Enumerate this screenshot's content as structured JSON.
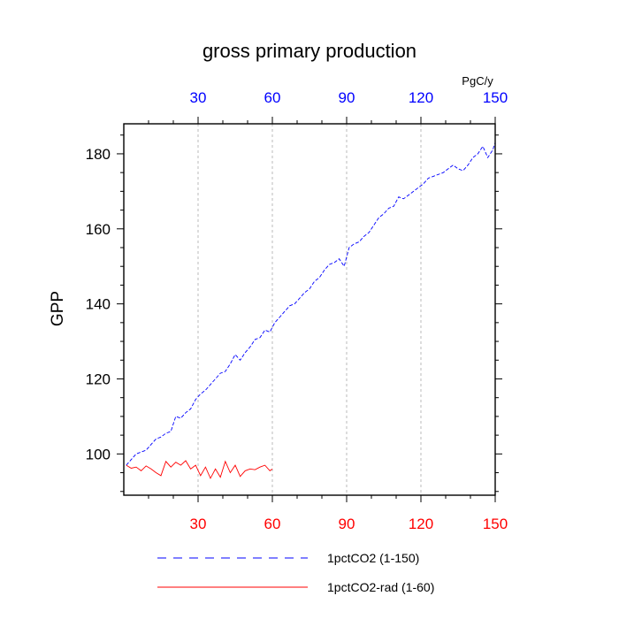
{
  "chart_data": {
    "type": "line",
    "title": "gross primary production",
    "ylabel": "GPP",
    "units_label": "PgC/y",
    "xlim": [
      0,
      150
    ],
    "ylim": [
      89,
      188
    ],
    "x_ticks": [
      30,
      60,
      90,
      120,
      150
    ],
    "y_ticks": [
      100,
      120,
      140,
      160,
      180
    ],
    "grid_x": [
      30,
      60,
      90,
      120
    ],
    "bottom_tick_color": "#ff0000",
    "top_tick_color": "#0000ff",
    "legend_position": "bottom",
    "series": [
      {
        "name": "1pctCO2 (1-150)",
        "color": "#0000ff",
        "dash": "dashed",
        "x": [
          1,
          3,
          5,
          7,
          9,
          11,
          13,
          15,
          17,
          19,
          21,
          23,
          25,
          27,
          29,
          31,
          33,
          35,
          37,
          39,
          41,
          43,
          45,
          47,
          49,
          51,
          53,
          55,
          57,
          59,
          61,
          63,
          65,
          67,
          69,
          71,
          73,
          75,
          77,
          79,
          81,
          83,
          85,
          87,
          89,
          91,
          93,
          95,
          97,
          99,
          101,
          103,
          105,
          107,
          109,
          111,
          113,
          115,
          117,
          119,
          121,
          123,
          125,
          127,
          129,
          131,
          133,
          135,
          137,
          139,
          141,
          143,
          145,
          147,
          149,
          150
        ],
        "y": [
          97,
          98.5,
          100,
          100.5,
          101,
          102.5,
          104,
          104.5,
          105.5,
          106,
          110,
          109.5,
          111,
          112,
          114.5,
          116,
          117,
          118.5,
          120,
          121.5,
          122,
          124,
          126.5,
          125,
          127,
          128.5,
          130.5,
          131,
          133,
          132.5,
          135,
          136.5,
          138,
          139.5,
          140,
          141.5,
          143,
          144,
          146,
          147,
          149,
          150.5,
          151,
          152,
          150,
          155,
          156,
          156.5,
          158,
          159,
          161,
          163,
          164,
          165.5,
          166,
          168.5,
          168,
          169,
          170,
          171,
          172,
          173.5,
          174,
          174.5,
          175,
          176,
          177,
          176,
          175.5,
          177,
          179,
          180,
          182,
          179,
          181,
          183
        ]
      },
      {
        "name": "1pctCO2-rad (1-60)",
        "color": "#ff0000",
        "dash": "solid",
        "x": [
          1,
          3,
          5,
          7,
          9,
          11,
          13,
          15,
          17,
          19,
          21,
          23,
          25,
          27,
          29,
          31,
          33,
          35,
          37,
          39,
          41,
          43,
          45,
          47,
          49,
          51,
          53,
          55,
          57,
          59,
          60
        ],
        "y": [
          97,
          96.2,
          96.5,
          95.5,
          96.8,
          96,
          95,
          94.2,
          98,
          96.5,
          97.8,
          97,
          98.2,
          96,
          97,
          94.2,
          96.5,
          93.5,
          96,
          93.8,
          98,
          95,
          97,
          94,
          95.5,
          96,
          95.8,
          96.5,
          97,
          95.5,
          96
        ]
      }
    ]
  }
}
